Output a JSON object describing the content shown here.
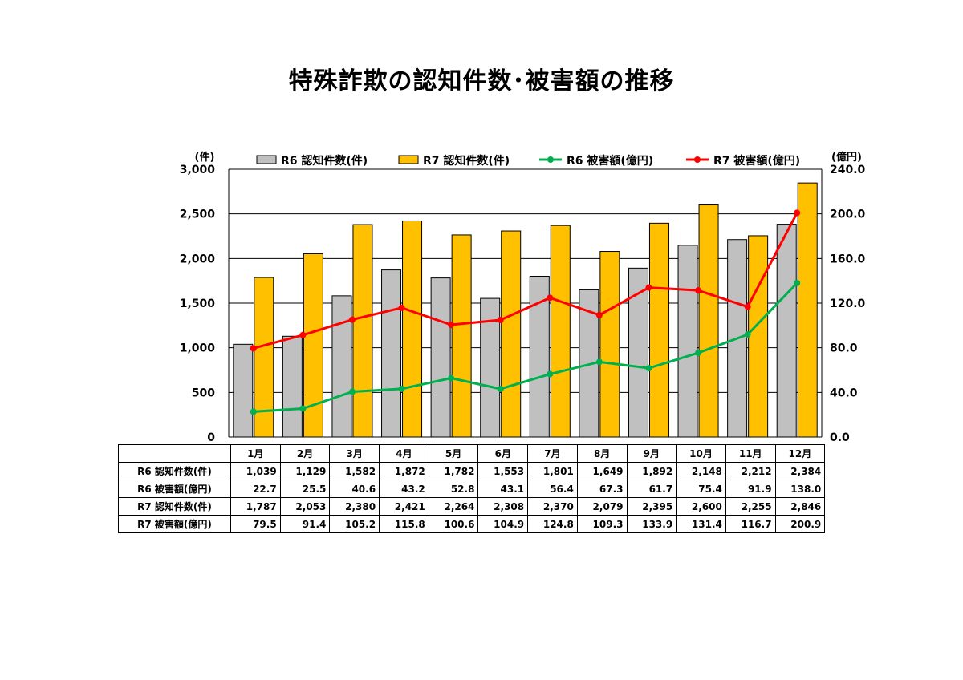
{
  "title": "特殊詐欺の認知件数･被害額の推移",
  "chart_data": {
    "type": "bar",
    "categories": [
      "1月",
      "2月",
      "3月",
      "4月",
      "5月",
      "6月",
      "7月",
      "8月",
      "9月",
      "10月",
      "11月",
      "12月"
    ],
    "bar_series": [
      {
        "name": "R6 認知件数(件)",
        "color": "#c0c0c0",
        "values": [
          1039,
          1129,
          1582,
          1872,
          1782,
          1553,
          1801,
          1649,
          1892,
          2148,
          2212,
          2384
        ]
      },
      {
        "name": "R7 認知件数(件)",
        "color": "#ffc000",
        "values": [
          1787,
          2053,
          2380,
          2421,
          2264,
          2308,
          2370,
          2079,
          2395,
          2600,
          2255,
          2846
        ]
      }
    ],
    "line_series": [
      {
        "name": "R6 被害額(億円)",
        "color": "#00b050",
        "values": [
          22.7,
          25.5,
          40.6,
          43.2,
          52.8,
          43.1,
          56.4,
          67.3,
          61.7,
          75.4,
          91.9,
          138.0
        ]
      },
      {
        "name": "R7 被害額(億円)",
        "color": "#ff0000",
        "values": [
          79.5,
          91.4,
          105.2,
          115.8,
          100.6,
          104.9,
          124.8,
          109.3,
          133.9,
          131.4,
          116.7,
          200.9
        ]
      }
    ],
    "y_left": {
      "label": "(件)",
      "min": 0,
      "max": 3000,
      "ticks": [
        "0",
        "500",
        "1,000",
        "1,500",
        "2,000",
        "2,500",
        "3,000"
      ]
    },
    "y_right": {
      "label": "(億円)",
      "min": 0,
      "max": 240,
      "ticks": [
        "0.0",
        "40.0",
        "80.0",
        "120.0",
        "160.0",
        "200.0",
        "240.0"
      ]
    },
    "grid": true,
    "legend": "top"
  },
  "table": {
    "rows": [
      {
        "label": "R6 認知件数(件)",
        "values": [
          "1,039",
          "1,129",
          "1,582",
          "1,872",
          "1,782",
          "1,553",
          "1,801",
          "1,649",
          "1,892",
          "2,148",
          "2,212",
          "2,384"
        ]
      },
      {
        "label": "R6 被害額(億円)",
        "values": [
          "22.7",
          "25.5",
          "40.6",
          "43.2",
          "52.8",
          "43.1",
          "56.4",
          "67.3",
          "61.7",
          "75.4",
          "91.9",
          "138.0"
        ]
      },
      {
        "label": "R7 認知件数(件)",
        "values": [
          "1,787",
          "2,053",
          "2,380",
          "2,421",
          "2,264",
          "2,308",
          "2,370",
          "2,079",
          "2,395",
          "2,600",
          "2,255",
          "2,846"
        ]
      },
      {
        "label": "R7 被害額(億円)",
        "values": [
          "79.5",
          "91.4",
          "105.2",
          "115.8",
          "100.6",
          "104.9",
          "124.8",
          "109.3",
          "133.9",
          "131.4",
          "116.7",
          "200.9"
        ]
      }
    ]
  }
}
